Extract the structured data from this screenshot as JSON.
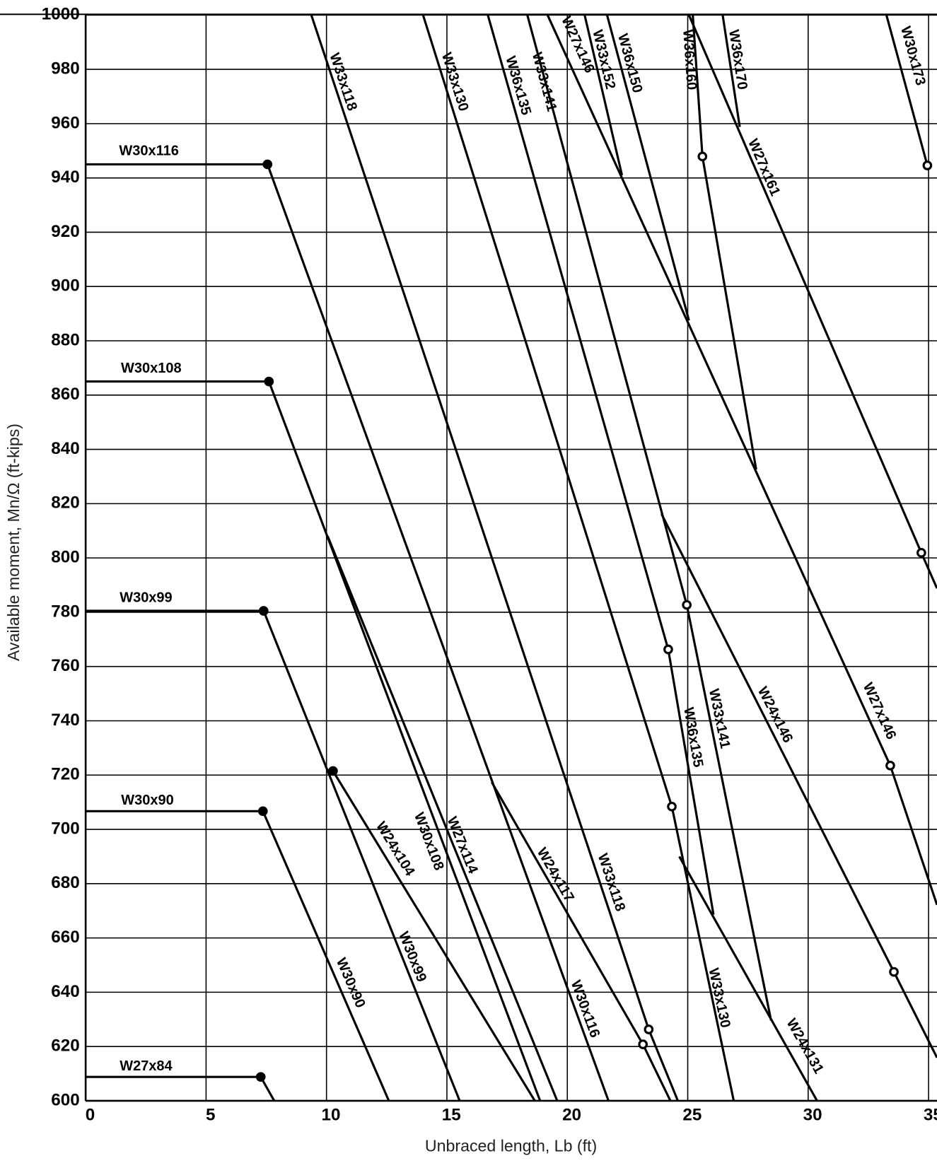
{
  "chart_data": {
    "type": "line",
    "x_label": "Unbraced length, Lb (ft)",
    "y_label": "Available moment, Mn/Ω (ft-kips)",
    "xlim": [
      0,
      35.35
    ],
    "ylim": [
      600,
      1000
    ],
    "xticks": [
      0,
      5,
      10,
      15,
      20,
      25,
      30,
      35
    ],
    "yticks": [
      600,
      620,
      640,
      660,
      680,
      700,
      720,
      740,
      760,
      780,
      800,
      820,
      840,
      860,
      880,
      900,
      920,
      940,
      960,
      980,
      1000
    ],
    "grid": true,
    "color": "#000000",
    "series": [
      {
        "name": "W30x116",
        "x": [
          0,
          7.55,
          21.71
        ],
        "values": [
          945,
          945,
          600
        ],
        "markers": [
          null,
          "filled",
          null
        ]
      },
      {
        "name": "W30x108",
        "x": [
          0,
          7.61,
          18.87
        ],
        "values": [
          865,
          865,
          600
        ],
        "markers": [
          null,
          "filled",
          null
        ]
      },
      {
        "name": "W30x99",
        "x": [
          0,
          7.39,
          15.53
        ],
        "values": [
          780.5,
          780.5,
          600
        ],
        "markers": [
          null,
          "filled",
          null
        ]
      },
      {
        "name": "W30x90",
        "x": [
          0,
          7.36,
          12.59
        ],
        "values": [
          706.7,
          706.7,
          600
        ],
        "markers": [
          null,
          "filled",
          null
        ]
      },
      {
        "name": "W27x84",
        "x": [
          0,
          7.27,
          7.83
        ],
        "values": [
          608.8,
          608.8,
          600
        ],
        "markers": [
          null,
          "filled",
          null
        ]
      },
      {
        "name": "W24x104",
        "x": [
          10.27,
          18.65
        ],
        "values": [
          721.5,
          600
        ],
        "markers": [
          "filled",
          null
        ]
      },
      {
        "name": "W27x114",
        "x": [
          10.05,
          19.58
        ],
        "values": [
          808,
          600
        ],
        "markers": [
          null,
          null
        ]
      },
      {
        "name": "W33x118",
        "x": [
          9.37,
          23.38,
          24.59
        ],
        "values": [
          1000,
          626.3,
          600
        ],
        "markers": [
          null,
          "open",
          null
        ]
      },
      {
        "name": "W33x130",
        "x": [
          14.01,
          24.34,
          26.91
        ],
        "values": [
          1000,
          708.4,
          600
        ],
        "markers": [
          null,
          "open",
          null
        ]
      },
      {
        "name": "W36x135",
        "x": [
          16.7,
          24.19,
          26.07
        ],
        "values": [
          1000,
          766.3,
          668.6
        ],
        "markers": [
          null,
          "open",
          null
        ]
      },
      {
        "name": "W33x141",
        "x": [
          18.34,
          24.96,
          28.46
        ],
        "values": [
          1000,
          782.7,
          629.6
        ],
        "markers": [
          null,
          "open",
          null
        ]
      },
      {
        "name": "W24x146",
        "x": [
          23.91,
          33.56,
          35.35
        ],
        "values": [
          816.2,
          647.5,
          615.9
        ],
        "markers": [
          null,
          "open",
          null
        ]
      },
      {
        "name": "W24x131",
        "x": [
          24.65,
          30.37
        ],
        "values": [
          690,
          600
        ],
        "markers": [
          null,
          null
        ]
      },
      {
        "name": "W24x117",
        "x": [
          16.86,
          23.14,
          24.28
        ],
        "values": [
          717.4,
          620.8,
          600
        ],
        "markers": [
          null,
          "open",
          null
        ]
      },
      {
        "name": "W27x146",
        "x": [
          19.18,
          33.41,
          35.35
        ],
        "values": [
          1000,
          723.5,
          672.2
        ],
        "markers": [
          null,
          "open",
          null
        ]
      },
      {
        "name": "W33x152",
        "x": [
          20.72,
          22.27
        ],
        "values": [
          1000,
          941
        ],
        "markers": [
          null,
          null
        ]
      },
      {
        "name": "W36x150",
        "x": [
          21.65,
          25.05
        ],
        "values": [
          1000,
          887.5
        ],
        "markers": [
          null,
          null
        ]
      },
      {
        "name": "W36x160",
        "x": [
          25.21,
          25.61,
          27.84
        ],
        "values": [
          1000,
          947.9,
          832.6
        ],
        "markers": [
          null,
          "open",
          null
        ]
      },
      {
        "name": "W36x170",
        "x": [
          26.45,
          27.16
        ],
        "values": [
          1000,
          958.8
        ],
        "markers": [
          null,
          null
        ]
      },
      {
        "name": "W27x161",
        "x": [
          25.05,
          34.7,
          35.35
        ],
        "values": [
          1000,
          801.9,
          788.8
        ],
        "markers": [
          null,
          "open",
          null
        ]
      },
      {
        "name": "W30x173",
        "x": [
          33.25,
          34.95
        ],
        "values": [
          1000,
          944.6
        ],
        "markers": [
          null,
          "open"
        ]
      }
    ]
  }
}
